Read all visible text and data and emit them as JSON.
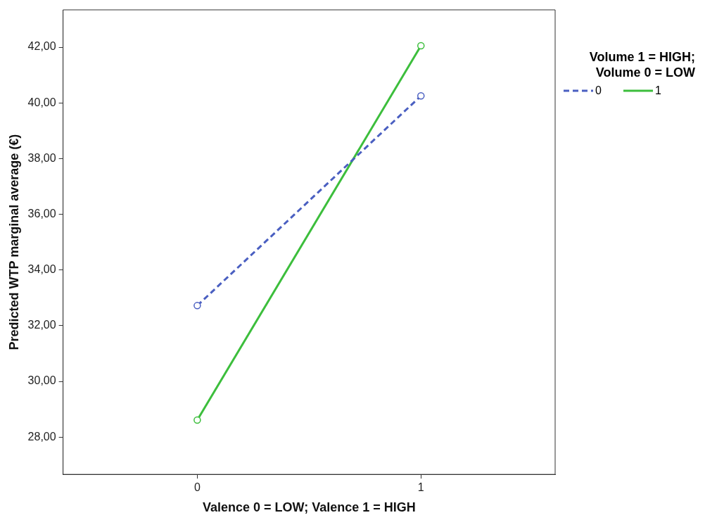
{
  "chart_data": {
    "type": "line",
    "xlabel": "Valence 0 = LOW; Valence 1 = HIGH",
    "ylabel": "Predicted WTP marginal average (€)",
    "legend_title": "Volume 1 = HIGH; Volume 0 = LOW",
    "legend": "top right",
    "grid": false,
    "marker": "circle",
    "x": [
      0,
      1
    ],
    "xlim": [
      -0.6,
      1.6
    ],
    "xticks": [
      0,
      1
    ],
    "ylim": [
      26.66,
      43.34
    ],
    "yticks": [
      {
        "value": 28,
        "label": "28,00"
      },
      {
        "value": 30,
        "label": "30,00"
      },
      {
        "value": 32,
        "label": "32,00"
      },
      {
        "value": 34,
        "label": "34,00"
      },
      {
        "value": 36,
        "label": "36,00"
      },
      {
        "value": 38,
        "label": "38,00"
      },
      {
        "value": 40,
        "label": "40,00"
      },
      {
        "value": 42,
        "label": "42,00"
      }
    ],
    "series": [
      {
        "name": "0",
        "color": "#4a5fc1",
        "line_style": "dashed",
        "values": [
          32.72,
          40.25
        ]
      },
      {
        "name": "1",
        "color": "#3cbe3c",
        "line_style": "solid",
        "values": [
          28.61,
          42.05
        ]
      }
    ]
  }
}
